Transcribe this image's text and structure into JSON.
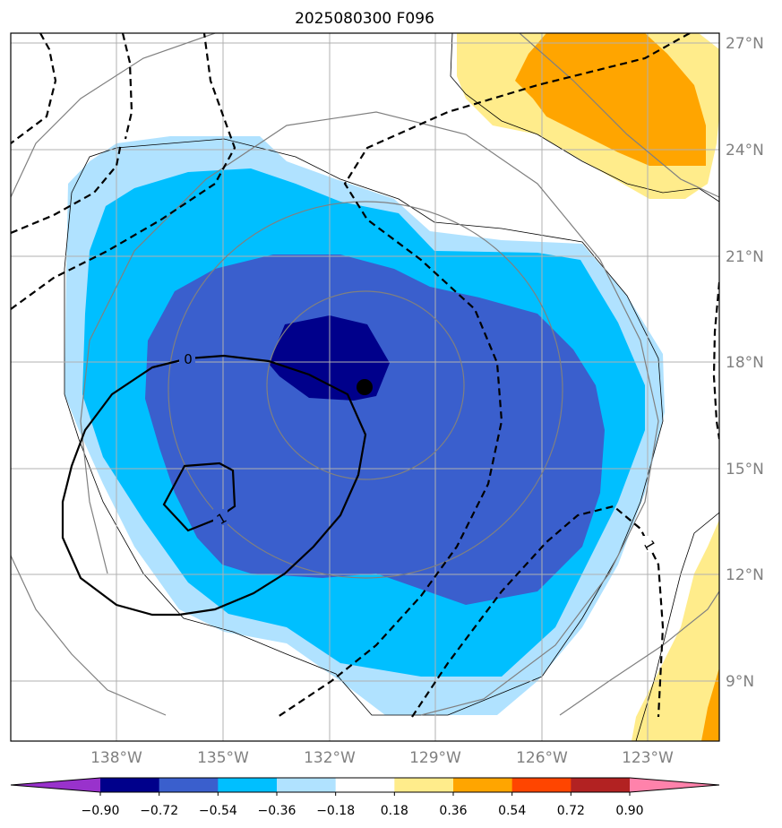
{
  "title": "2025080300 F096",
  "chart_data": {
    "type": "contour-map",
    "title": "2025080300 F096",
    "lon_range": [
      -139.6,
      -119.4
    ],
    "lat_range": [
      7.3,
      27.3
    ],
    "lon_ticks": [
      "138°W",
      "135°W",
      "132°W",
      "129°W",
      "126°W",
      "123°W"
    ],
    "lat_ticks": [
      "27°N",
      "24°N",
      "21°N",
      "18°N",
      "15°N",
      "12°N",
      "9°N"
    ],
    "colorbar": {
      "levels": [
        "−0.90",
        "−0.72",
        "−0.54",
        "−0.36",
        "−0.18",
        "0.18",
        "0.36",
        "0.54",
        "0.72",
        "0.90"
      ],
      "colors": [
        "#9932cc",
        "#00008b",
        "#3a5fcd",
        "#00bfff",
        "#b0e2ff",
        "#ffffff",
        "#ffec8b",
        "#ffa500",
        "#ff4500",
        "#b22222",
        "#ff82ab"
      ]
    },
    "center_marker": {
      "lon": -131.1,
      "lat": 17.3
    },
    "contour_labels": [
      "0",
      "1",
      "1",
      "1"
    ]
  }
}
